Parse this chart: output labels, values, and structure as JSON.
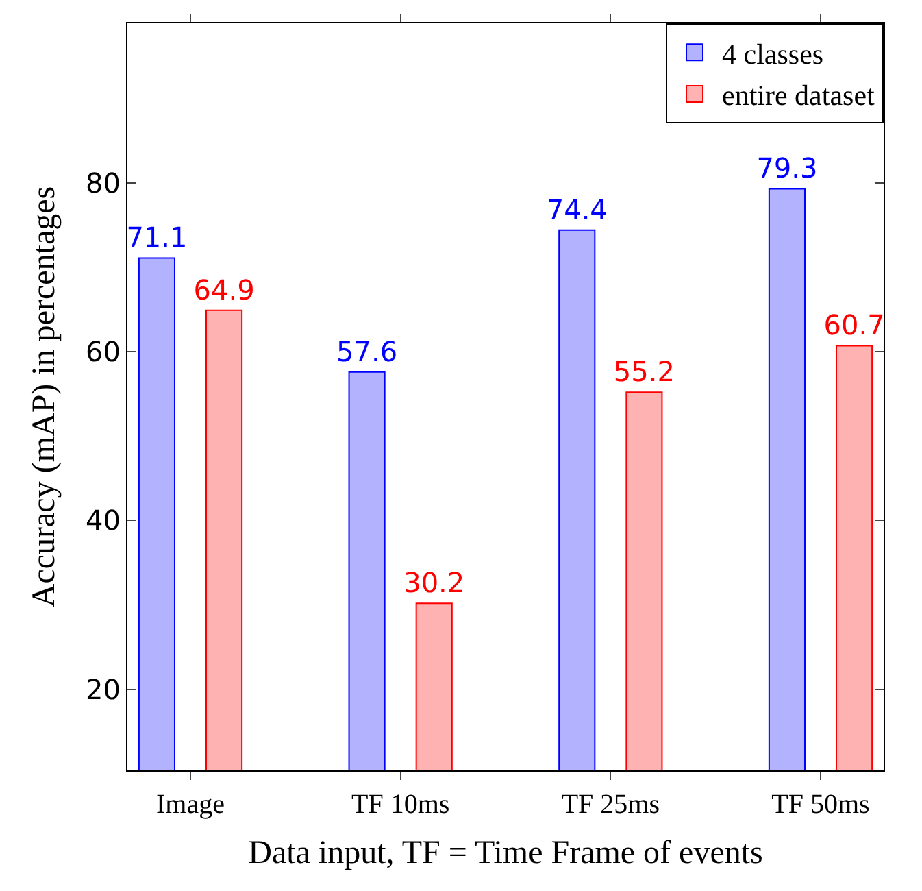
{
  "chart_data": {
    "type": "bar",
    "xlabel": "Data input, TF = Time Frame of events",
    "ylabel": "Accuracy (mAP) in percentages",
    "categories": [
      "Image",
      "TF 10ms",
      "TF 25ms",
      "TF 50ms"
    ],
    "series": [
      {
        "name": "4 classes",
        "color": "#0000ff",
        "values": [
          71.1,
          57.6,
          74.4,
          79.3
        ]
      },
      {
        "name": "entire dataset",
        "color": "#ff0000",
        "values": [
          64.9,
          30.2,
          55.2,
          60.7
        ]
      }
    ],
    "ylim": [
      10.4,
      98.9
    ],
    "yticks": [
      20,
      40,
      60,
      80
    ],
    "data_labels": true,
    "legend": "top right"
  }
}
